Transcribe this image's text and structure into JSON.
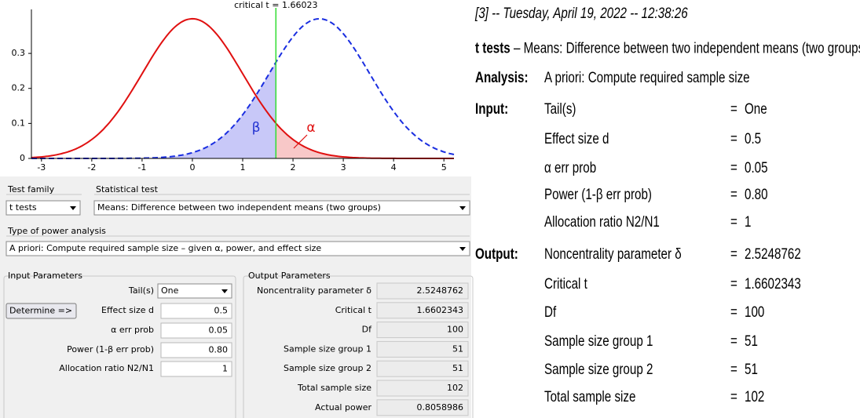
{
  "plot": {
    "title": "critical t = 1.66023",
    "xlim": [
      -3.2,
      5.2
    ],
    "ylim": [
      0,
      0.41
    ],
    "xticks": [
      -3,
      -2,
      -1,
      0,
      1,
      2,
      3,
      4,
      5
    ],
    "yticks": [
      0,
      0.1,
      0.2,
      0.3
    ],
    "beta_label": "β",
    "alpha_label": "α"
  },
  "test_family": {
    "label": "Test family",
    "value": "t tests"
  },
  "statistical_test": {
    "label": "Statistical test",
    "value": "Means: Difference between two independent means (two groups)"
  },
  "type_of_power_analysis": {
    "label": "Type of power analysis",
    "value": "A priori: Compute required sample size – given α, power, and effect size"
  },
  "input_parameters": {
    "title": "Input Parameters",
    "button": "Determine =>",
    "rows": [
      {
        "label": "Tail(s)",
        "value": "One"
      },
      {
        "label": "Effect size d",
        "value": "0.5"
      },
      {
        "label": "α err prob",
        "value": "0.05"
      },
      {
        "label": "Power (1-β err prob)",
        "value": "0.80"
      },
      {
        "label": "Allocation ratio N2/N1",
        "value": "1"
      }
    ]
  },
  "output_parameters": {
    "title": "Output Parameters",
    "rows": [
      {
        "label": "Noncentrality parameter δ",
        "value": "2.5248762"
      },
      {
        "label": "Critical t",
        "value": "1.6602343"
      },
      {
        "label": "Df",
        "value": "100"
      },
      {
        "label": "Sample size group 1",
        "value": "51"
      },
      {
        "label": "Sample size group 2",
        "value": "51"
      },
      {
        "label": "Total sample size",
        "value": "102"
      },
      {
        "label": "Actual power",
        "value": "0.8058986"
      }
    ]
  },
  "report": {
    "header": "[3] -- Tuesday, April 19, 2022 -- 12:38:26",
    "test_name": "t tests",
    "test_desc": " – Means: Difference between two independent means (two groups)",
    "analysis_label": "Analysis:",
    "analysis": "A priori: Compute required sample size",
    "sep": "=",
    "sections": [
      {
        "label": "Input:",
        "rows": [
          {
            "name": "Tail(s)",
            "value": "One"
          },
          {
            "name": "Effect size d",
            "value": "0.5"
          },
          {
            "name": "α err prob",
            "value": "0.05"
          },
          {
            "name": "Power (1-β err prob)",
            "value": "0.80"
          },
          {
            "name": "Allocation ratio N2/N1",
            "value": "1"
          }
        ]
      },
      {
        "label": "Output:",
        "rows": [
          {
            "name": "Noncentrality parameter δ",
            "value": "2.5248762"
          },
          {
            "name": "Critical t",
            "value": "1.6602343"
          },
          {
            "name": "Df",
            "value": "100"
          },
          {
            "name": "Sample size group 1",
            "value": "51"
          },
          {
            "name": "Sample size group 2",
            "value": "51"
          },
          {
            "name": "Total sample size",
            "value": "102"
          }
        ]
      }
    ]
  }
}
